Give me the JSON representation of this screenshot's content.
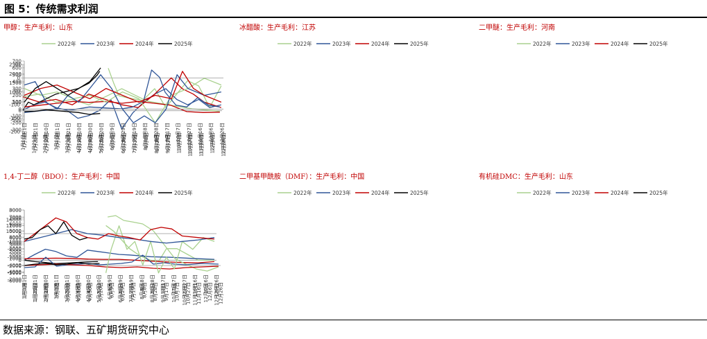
{
  "figure_title": "图 5：传统需求利润",
  "source": "数据来源：钢联、五矿期货研究中心",
  "series_colors": {
    "2022年": "#a9d18e",
    "2023年": "#2f5597",
    "2024年": "#c00000",
    "2025年": "#000000"
  },
  "chart_data": [
    {
      "type": "line",
      "title": "甲醇：生产毛利：山东",
      "x_labels": [
        "1月1日",
        "1月21日",
        "2月10日",
        "3月1日",
        "3月21日",
        "4月10日",
        "4月30日",
        "5月20日",
        "6月9日",
        "6月29日",
        "7月19日",
        "8月8日",
        "8月28日",
        "9月17日",
        "10月7日",
        "10月27日",
        "11月16日",
        "12月6日",
        "12月26日"
      ],
      "ylim": [
        -200,
        50
      ],
      "yticks": [
        50,
        0,
        -50,
        -100,
        -150,
        -200
      ],
      "series": [
        {
          "name": "2022年",
          "x": [
            0,
            30,
            60,
            90,
            120,
            150,
            180,
            200,
            220,
            240,
            260,
            280,
            300,
            320,
            340,
            361
          ],
          "values": [
            -70,
            -60,
            -90,
            -80,
            -100,
            -70,
            -40,
            -60,
            -80,
            -40,
            -110,
            -60,
            -10,
            -30,
            -110,
            -30
          ]
        },
        {
          "name": "2023年",
          "x": [
            0,
            20,
            40,
            60,
            80,
            100,
            120,
            140,
            160,
            180,
            200,
            220,
            240,
            260,
            280,
            300,
            320,
            340,
            361
          ],
          "values": [
            -120,
            -100,
            -90,
            -110,
            -120,
            -150,
            -140,
            -120,
            -80,
            -190,
            -130,
            -90,
            -60,
            -40,
            -80,
            -100,
            -80,
            -110,
            -100
          ]
        },
        {
          "name": "2024年",
          "x": [
            0,
            30,
            60,
            90,
            120,
            150,
            180,
            210,
            240,
            270,
            290,
            310,
            330,
            361
          ],
          "values": [
            -70,
            -90,
            -80,
            -100,
            -60,
            -80,
            -100,
            -110,
            -60,
            0,
            -40,
            -60,
            -90,
            -110
          ]
        },
        {
          "name": "2025年",
          "x": [
            0,
            10,
            20,
            40,
            60,
            80,
            100,
            120,
            135,
            140
          ],
          "values": [
            -120,
            -90,
            -100,
            -80,
            -60,
            -50,
            -40,
            -20,
            10,
            25
          ]
        }
      ]
    },
    {
      "type": "line",
      "title": "冰醋酸：生产毛利：江苏",
      "x_labels": [
        "1月1日",
        "1月21日",
        "2月10日",
        "3月1日",
        "3月21日",
        "4月10日",
        "4月30日",
        "5月20日",
        "6月9日",
        "6月29日",
        "7月19日",
        "8月8日",
        "8月28日",
        "9月17日",
        "10月7日",
        "10月27日",
        "11月16日",
        "12月6日",
        "12月26日"
      ],
      "ylim": [
        -500,
        2500
      ],
      "yticks": [
        2500,
        2000,
        1500,
        1000,
        500,
        0,
        -500
      ],
      "series": [
        {
          "name": "2022年",
          "x": [
            155,
            165,
            175,
            190,
            210,
            230,
            250,
            270,
            290,
            310,
            330,
            350,
            361
          ],
          "values": [
            2300,
            1500,
            800,
            700,
            600,
            500,
            400,
            300,
            200,
            100,
            50,
            0,
            -50
          ]
        },
        {
          "name": "2023年",
          "x": [
            0,
            30,
            60,
            90,
            120,
            150,
            180,
            200,
            220,
            235,
            250,
            260,
            280,
            300,
            320,
            340,
            361
          ],
          "values": [
            -100,
            0,
            100,
            50,
            200,
            150,
            100,
            200,
            500,
            2200,
            1800,
            1000,
            300,
            200,
            700,
            300,
            200
          ]
        },
        {
          "name": "2024年",
          "x": [
            0,
            30,
            60,
            90,
            120,
            150,
            180,
            210,
            240,
            270,
            300,
            330,
            361
          ],
          "values": [
            200,
            300,
            400,
            500,
            450,
            500,
            400,
            500,
            400,
            300,
            -50,
            -100,
            -80
          ]
        },
        {
          "name": "2025年",
          "x": [
            0,
            20,
            40,
            60,
            80,
            100,
            120,
            140
          ],
          "values": [
            -50,
            -30,
            50,
            0,
            -50,
            -100,
            -200,
            -150
          ]
        }
      ]
    },
    {
      "type": "line",
      "title": "二甲醚：生产毛利：河南",
      "x_labels": [
        "1月1日",
        "1月21日",
        "2月10日",
        "3月1日",
        "3月21日",
        "4月10日",
        "4月30日",
        "5月20日",
        "6月9日",
        "6月29日",
        "7月19日",
        "8月8日",
        "8月28日",
        "9月17日",
        "10月7日",
        "10月27日",
        "11月16日",
        "12月6日",
        "12月26日"
      ],
      "ylim": [
        -300,
        700
      ],
      "yticks": [
        700,
        600,
        500,
        400,
        300,
        200,
        100,
        0,
        -100,
        -200,
        -300
      ],
      "series": [
        {
          "name": "2022年",
          "x": [
            0,
            30,
            60,
            90,
            120,
            150,
            180,
            210,
            240,
            270,
            300,
            330,
            361
          ],
          "values": [
            300,
            200,
            250,
            150,
            200,
            100,
            250,
            150,
            -200,
            200,
            300,
            450,
            350
          ]
        },
        {
          "name": "2023年",
          "x": [
            0,
            20,
            40,
            60,
            80,
            100,
            120,
            140,
            160,
            180,
            200,
            220,
            240,
            260,
            280,
            300,
            330,
            361
          ],
          "values": [
            350,
            400,
            100,
            0,
            200,
            100,
            300,
            500,
            300,
            0,
            -200,
            -100,
            -200,
            0,
            500,
            300,
            200,
            250
          ]
        },
        {
          "name": "2024年",
          "x": [
            0,
            30,
            60,
            90,
            120,
            150,
            180,
            210,
            240,
            270,
            290,
            310,
            330,
            361
          ],
          "values": [
            200,
            300,
            350,
            250,
            150,
            300,
            200,
            100,
            200,
            150,
            550,
            300,
            200,
            100
          ]
        },
        {
          "name": "2025年",
          "x": [
            0,
            20,
            40,
            60,
            80,
            100,
            120,
            140
          ],
          "values": [
            100,
            300,
            400,
            300,
            200,
            300,
            400,
            600
          ]
        }
      ]
    },
    {
      "type": "line",
      "title": "1,4-丁二醇（BDO）：生产毛利：中国",
      "x_labels": [
        "1月1日",
        "1月21日",
        "2月10日",
        "3月1日",
        "3月21日",
        "4月10日",
        "4月30日",
        "5月20日",
        "6月9日",
        "6月29日",
        "7月19日",
        "8月8日",
        "8月28日",
        "9月17日",
        "10月7日",
        "10月27日",
        "11月16日",
        "12月6日",
        "12月26日"
      ],
      "ylim": [
        -4000,
        14000
      ],
      "yticks": [
        14000,
        12000,
        10000,
        8000,
        6000,
        4000,
        2000,
        0,
        -2000,
        -4000
      ],
      "series": [
        {
          "name": "2022年",
          "x": [
            155,
            170,
            185,
            200,
            220,
            240,
            255,
            270,
            290,
            310,
            330,
            361
          ],
          "values": [
            12000,
            10000,
            7000,
            4000,
            1500,
            0,
            -500,
            4000,
            4000,
            2000,
            0,
            0
          ]
        },
        {
          "name": "2023年",
          "x": [
            0,
            20,
            40,
            60,
            80,
            100,
            120,
            140,
            160,
            180,
            200,
            240,
            280,
            320,
            361
          ],
          "values": [
            0,
            2000,
            3800,
            3000,
            1500,
            1000,
            3500,
            3000,
            2500,
            2000,
            1800,
            1200,
            1000,
            600,
            300
          ]
        },
        {
          "name": "2024年",
          "x": [
            0,
            30,
            60,
            90,
            120,
            150,
            180,
            210,
            240,
            270,
            300,
            330,
            361
          ],
          "values": [
            500,
            600,
            700,
            600,
            400,
            300,
            300,
            0,
            -300,
            -600,
            -800,
            -900,
            -500
          ]
        },
        {
          "name": "2025年",
          "x": [
            0,
            20,
            40,
            60,
            80,
            100,
            120,
            140
          ],
          "values": [
            0,
            -500,
            -800,
            -1200,
            -1000,
            -800,
            -600,
            -500
          ]
        }
      ]
    },
    {
      "type": "line",
      "title": "二甲基甲酰胺（DMF）：生产毛利：中国",
      "x_labels": [
        "1月1日",
        "1月21日",
        "2月10日",
        "3月1日",
        "3月21日",
        "4月10日",
        "4月30日",
        "5月20日",
        "6月9日",
        "6月29日",
        "7月19日",
        "8月8日",
        "8月28日",
        "9月17日",
        "10月7日",
        "10月27日",
        "11月16日",
        "12月6日",
        "12月26日"
      ],
      "ylim": [
        -2000,
        8000
      ],
      "yticks": [
        8000,
        7000,
        6000,
        5000,
        4000,
        3000,
        2000,
        1000,
        0,
        -1000,
        -2000
      ],
      "series": [
        {
          "name": "2022年",
          "x": [
            155,
            170,
            185,
            200,
            220,
            240,
            260,
            280,
            300,
            320,
            340,
            361
          ],
          "values": [
            7000,
            7200,
            6500,
            6300,
            6000,
            5000,
            3000,
            1000,
            200,
            -500,
            -800,
            -200
          ]
        },
        {
          "name": "2023年",
          "x": [
            0,
            20,
            40,
            60,
            80,
            100,
            120,
            140,
            160,
            180,
            200,
            210,
            220,
            240,
            260,
            280,
            300,
            330,
            361
          ],
          "values": [
            -300,
            -200,
            1200,
            -100,
            100,
            200,
            300,
            100,
            200,
            300,
            500,
            1000,
            1500,
            200,
            400,
            200,
            100,
            300,
            200
          ]
        },
        {
          "name": "2024年",
          "x": [
            0,
            30,
            60,
            90,
            120,
            150,
            180,
            210,
            240,
            270,
            300,
            330,
            361
          ],
          "values": [
            0,
            100,
            200,
            100,
            0,
            -200,
            -300,
            -200,
            -400,
            -500,
            -300,
            -200,
            -100
          ]
        },
        {
          "name": "2025年",
          "x": [
            0,
            20,
            40,
            60,
            80,
            100,
            120,
            140
          ],
          "values": [
            0,
            200,
            300,
            100,
            200,
            400,
            200,
            300
          ]
        }
      ]
    },
    {
      "type": "line",
      "title": "有机硅DMC：生产毛利：山东",
      "x_labels": [
        "1月1日",
        "1月21日",
        "2月10日",
        "3月1日",
        "3月21日",
        "4月10日",
        "4月30日",
        "5月20日",
        "6月9日",
        "6月29日",
        "7月19日",
        "8月8日",
        "8月28日",
        "9月17日",
        "10月7日",
        "10月27日",
        "11月16日",
        "12月6日",
        "12月26日"
      ],
      "ylim": [
        -6000,
        3000
      ],
      "yticks": [
        3000,
        2000,
        1000,
        0,
        -1000,
        -2000,
        -3000,
        -4000,
        -5000,
        -6000
      ],
      "series": [
        {
          "name": "2022年",
          "x": [
            155,
            165,
            180,
            195,
            210,
            225,
            240,
            255,
            270,
            285,
            300,
            320,
            340,
            361
          ],
          "values": [
            -5000,
            -2000,
            1000,
            -2000,
            -1000,
            -4000,
            -1000,
            -5000,
            -3000,
            -4500,
            -1000,
            -2000,
            -500,
            -1000
          ]
        },
        {
          "name": "2023年",
          "x": [
            0,
            30,
            60,
            90,
            120,
            150,
            180,
            210,
            240,
            270,
            300,
            330,
            361
          ],
          "values": [
            -1000,
            -500,
            0,
            500,
            0,
            -200,
            -500,
            -700,
            -1000,
            -1200,
            -1000,
            -800,
            -500
          ]
        },
        {
          "name": "2024年",
          "x": [
            0,
            20,
            40,
            60,
            80,
            100,
            120,
            140,
            160,
            180,
            200,
            220,
            240,
            260,
            280,
            300,
            330,
            361
          ],
          "values": [
            -1000,
            0,
            1000,
            2000,
            1500,
            0,
            -500,
            -700,
            0,
            -300,
            -500,
            -800,
            500,
            800,
            600,
            -300,
            -500,
            -700
          ]
        },
        {
          "name": "2025年",
          "x": [
            0,
            15,
            30,
            45,
            60,
            75,
            90,
            105,
            120
          ],
          "values": [
            -700,
            -500,
            500,
            1000,
            0,
            1500,
            -200,
            -800,
            -500
          ]
        }
      ]
    }
  ]
}
